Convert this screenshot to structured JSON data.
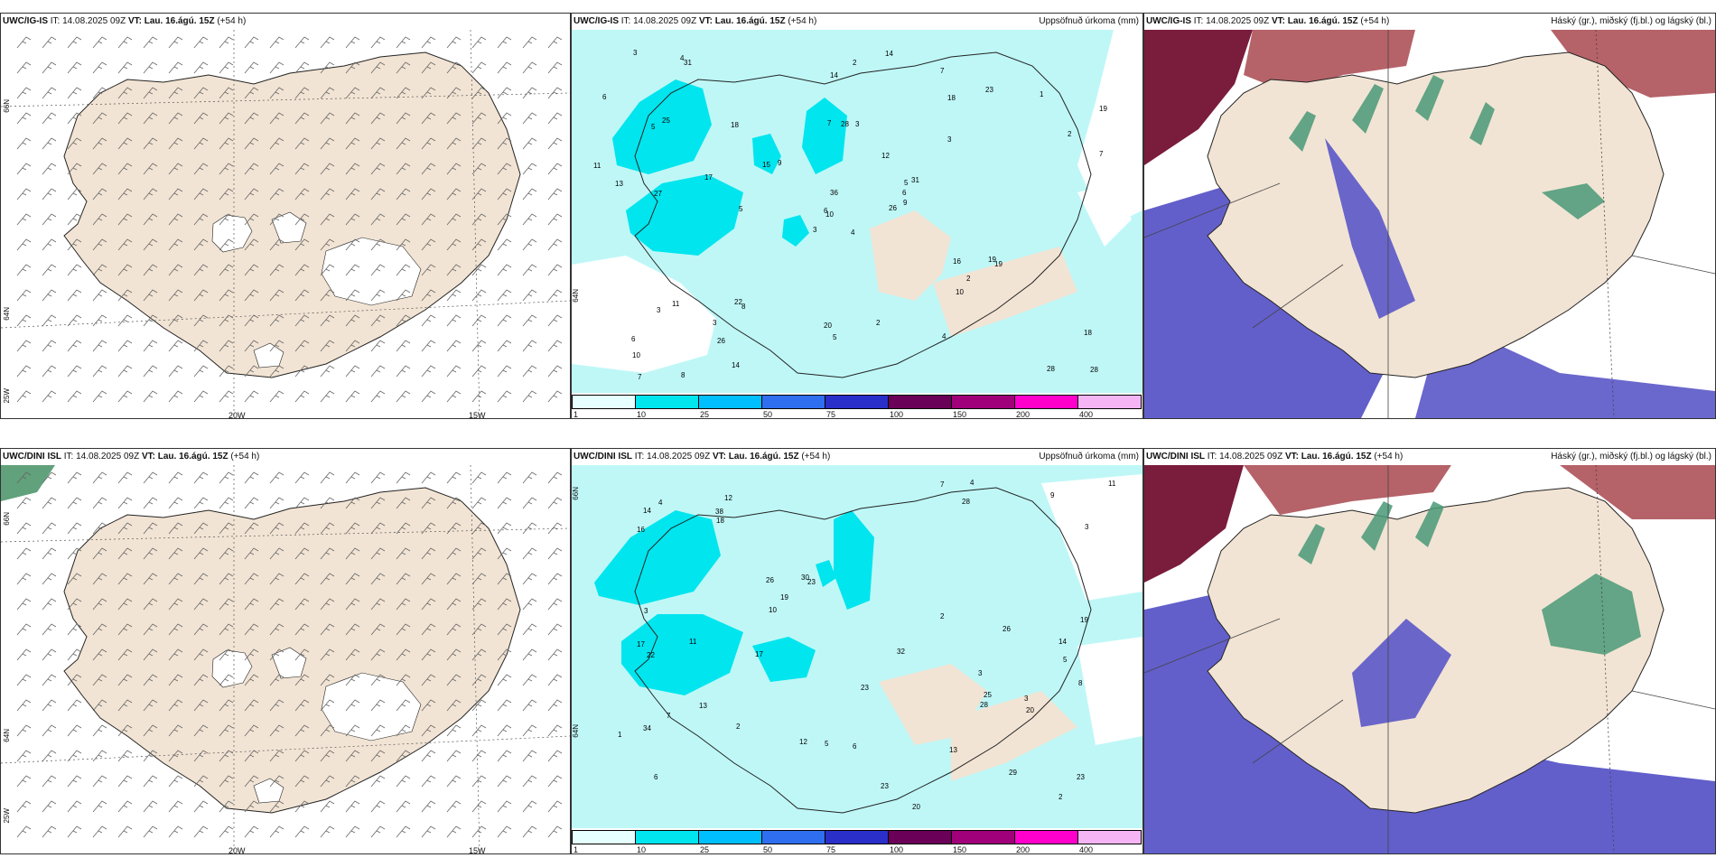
{
  "rows": [
    {
      "model": "UWC/IG-IS",
      "it": "14.08.2025 09Z",
      "vt_label": "VT:",
      "vt": "Lau. 16.ágú. 15Z",
      "lead": "(+54 h)",
      "it_label": "IT:"
    },
    {
      "model": "UWC/DINI ISL",
      "it": "14.08.2025 09Z",
      "vt_label": "VT:",
      "vt": "Lau. 16.ágú. 15Z",
      "lead": "(+54 h)",
      "it_label": "IT:"
    }
  ],
  "panels": {
    "wind": {
      "lon_labels": [
        "20W",
        "15W"
      ],
      "lat_labels": [
        "66N",
        "64N",
        "25W"
      ]
    },
    "precip": {
      "title": "Uppsöfnuð úrkoma (mm)",
      "colorbar": {
        "ticks": [
          "1",
          "10",
          "25",
          "50",
          "75",
          "100",
          "150",
          "200",
          "400"
        ],
        "colors": [
          "#e6ffff",
          "#00e5ee",
          "#00bfff",
          "#2f6fef",
          "#2b2fc9",
          "#6a0057",
          "#a0007a",
          "#ff00cc",
          "#f5b5f5"
        ]
      },
      "lat_label": "64N",
      "row1_values": [
        "4",
        "5",
        "10",
        "6",
        "5",
        "8",
        "7",
        "3",
        "18",
        "26",
        "31",
        "28",
        "27",
        "19",
        "3",
        "3",
        "8",
        "7",
        "12",
        "11",
        "9",
        "10",
        "26",
        "28",
        "31",
        "19",
        "25",
        "14",
        "13",
        "16",
        "7",
        "6",
        "20",
        "36",
        "18",
        "23",
        "22",
        "28",
        "18",
        "19",
        "14",
        "15",
        "17",
        "10",
        "14",
        "11",
        "6",
        "7",
        "5",
        "9",
        "3",
        "2",
        "6",
        "2",
        "4",
        "3",
        "4",
        "3",
        "2",
        "1",
        "2",
        "5"
      ],
      "row2_values": [
        "3",
        "5",
        "6",
        "12",
        "23",
        "29",
        "34",
        "28",
        "26",
        "20",
        "16",
        "17",
        "14",
        "23",
        "12",
        "19",
        "23",
        "32",
        "30",
        "13",
        "11",
        "9",
        "10",
        "8",
        "7",
        "38",
        "25",
        "22",
        "18",
        "26",
        "23",
        "13",
        "19",
        "17",
        "14",
        "20",
        "28",
        "11",
        "6",
        "7",
        "3",
        "4",
        "2",
        "5",
        "3",
        "2",
        "1",
        "4",
        "2",
        "3"
      ]
    },
    "cloud": {
      "title": "Háský (gr.), miðský (fj.bl.) og lágský (bl.)"
    }
  },
  "colors": {
    "land": "#f2e4d4",
    "sea": "#ffffff",
    "precip_light": "#bff7f7",
    "precip_mid": "#00e5ee",
    "low_cloud": "#5a56c8",
    "mid_cloud": "#4a9a78",
    "high_cloud": "#a8474f",
    "high_cloud_dark": "#7a1c3b"
  }
}
